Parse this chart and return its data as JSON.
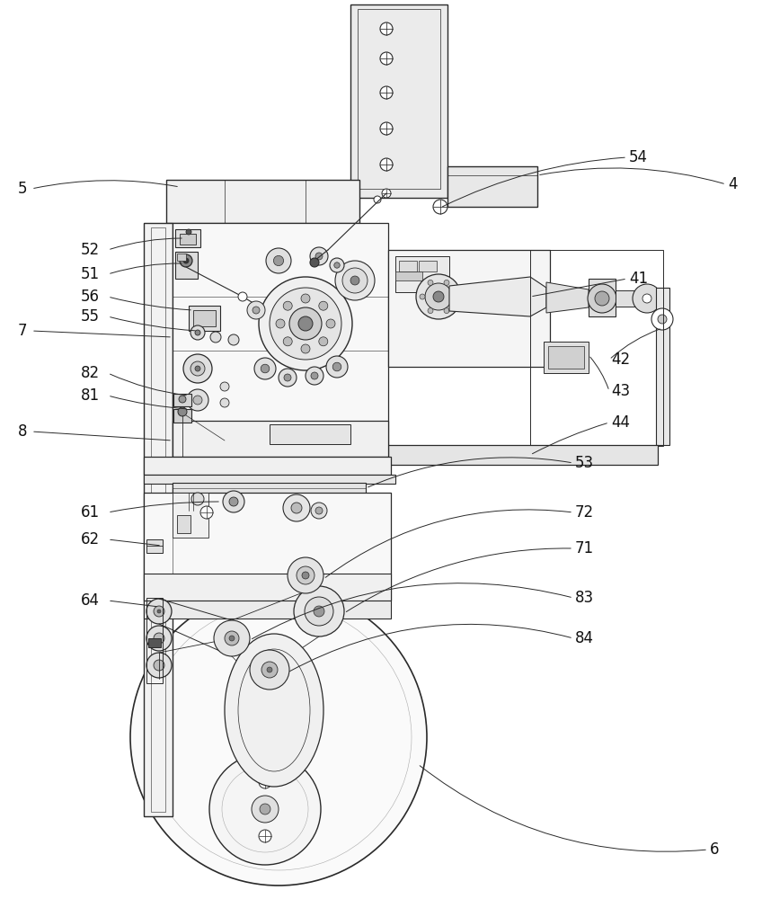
{
  "bg_color": "#ffffff",
  "lc": "#2a2a2a",
  "lc_thin": "#444444",
  "panel_gray": "#e0e0e0",
  "labels_left": [
    [
      "5",
      20,
      210
    ],
    [
      "52",
      90,
      278
    ],
    [
      "51",
      90,
      305
    ],
    [
      "56",
      90,
      330
    ],
    [
      "55",
      90,
      352
    ],
    [
      "7",
      20,
      368
    ],
    [
      "82",
      90,
      415
    ],
    [
      "81",
      90,
      440
    ],
    [
      "8",
      20,
      480
    ],
    [
      "61",
      90,
      570
    ],
    [
      "62",
      90,
      600
    ],
    [
      "64",
      90,
      668
    ]
  ],
  "labels_right": [
    [
      "54",
      700,
      175
    ],
    [
      "4",
      810,
      205
    ],
    [
      "41",
      700,
      310
    ],
    [
      "42",
      680,
      400
    ],
    [
      "43",
      680,
      435
    ],
    [
      "44",
      680,
      470
    ],
    [
      "53",
      640,
      515
    ],
    [
      "72",
      640,
      570
    ],
    [
      "71",
      640,
      610
    ],
    [
      "83",
      640,
      665
    ],
    [
      "84",
      640,
      710
    ],
    [
      "6",
      790,
      945
    ]
  ]
}
